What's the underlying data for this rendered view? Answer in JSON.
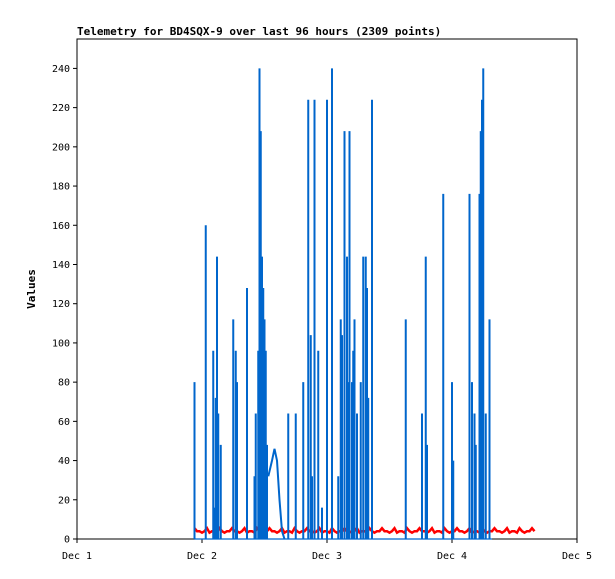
{
  "chart_data": {
    "type": "line",
    "title": "Telemetry for BD4SQX-9 over last 96 hours (2309 points)",
    "xlabel": "",
    "ylabel": "Values",
    "xlim": [
      0,
      4
    ],
    "ylim": [
      0,
      255
    ],
    "x_ticks": [
      {
        "x": 0,
        "label": "Dec 1"
      },
      {
        "x": 1,
        "label": "Dec 2"
      },
      {
        "x": 2,
        "label": "Dec 3"
      },
      {
        "x": 3,
        "label": "Dec 4"
      },
      {
        "x": 4,
        "label": "Dec 5"
      }
    ],
    "y_ticks": [
      0,
      20,
      40,
      60,
      80,
      100,
      120,
      140,
      160,
      180,
      200,
      220,
      240
    ],
    "grid": false,
    "series": [
      {
        "color": "#0066cc",
        "note_points": "x in days after Dec 1; spikes from baseline 0",
        "spikes": [
          [
            0.94,
            80
          ],
          [
            1.03,
            160
          ],
          [
            1.09,
            96
          ],
          [
            1.1,
            16
          ],
          [
            1.11,
            72
          ],
          [
            1.12,
            144
          ],
          [
            1.13,
            64
          ],
          [
            1.15,
            48
          ],
          [
            1.25,
            112
          ],
          [
            1.27,
            96
          ],
          [
            1.28,
            80
          ],
          [
            1.36,
            128
          ],
          [
            1.42,
            32
          ],
          [
            1.43,
            64
          ],
          [
            1.45,
            96
          ],
          [
            1.46,
            240
          ],
          [
            1.47,
            208
          ],
          [
            1.48,
            144
          ],
          [
            1.49,
            128
          ],
          [
            1.5,
            112
          ],
          [
            1.51,
            96
          ],
          [
            1.52,
            48
          ],
          [
            1.69,
            64
          ],
          [
            1.75,
            64
          ],
          [
            1.81,
            80
          ],
          [
            1.85,
            224
          ],
          [
            1.87,
            104
          ],
          [
            1.88,
            32
          ],
          [
            1.9,
            224
          ],
          [
            1.93,
            96
          ],
          [
            1.96,
            16
          ],
          [
            2.0,
            224
          ],
          [
            2.04,
            240
          ],
          [
            2.09,
            32
          ],
          [
            2.11,
            112
          ],
          [
            2.12,
            104
          ],
          [
            2.14,
            208
          ],
          [
            2.16,
            144
          ],
          [
            2.17,
            80
          ],
          [
            2.18,
            208
          ],
          [
            2.2,
            80
          ],
          [
            2.21,
            96
          ],
          [
            2.22,
            112
          ],
          [
            2.24,
            64
          ],
          [
            2.27,
            80
          ],
          [
            2.29,
            144
          ],
          [
            2.31,
            144
          ],
          [
            2.32,
            128
          ],
          [
            2.33,
            72
          ],
          [
            2.36,
            224
          ],
          [
            2.63,
            112
          ],
          [
            2.76,
            64
          ],
          [
            2.79,
            144
          ],
          [
            2.8,
            48
          ],
          [
            2.93,
            176
          ],
          [
            3.0,
            80
          ],
          [
            3.01,
            40
          ],
          [
            3.14,
            176
          ],
          [
            3.16,
            80
          ],
          [
            3.18,
            64
          ],
          [
            3.19,
            48
          ],
          [
            3.22,
            176
          ],
          [
            3.23,
            208
          ],
          [
            3.24,
            224
          ],
          [
            3.25,
            240
          ],
          [
            3.27,
            64
          ],
          [
            3.3,
            112
          ]
        ],
        "hump": [
          [
            1.53,
            32
          ],
          [
            1.56,
            40
          ],
          [
            1.58,
            46
          ],
          [
            1.6,
            40
          ],
          [
            1.62,
            20
          ],
          [
            1.64,
            4
          ],
          [
            1.66,
            0
          ]
        ]
      },
      {
        "color": "#ff0000",
        "baseline_value": 4,
        "x_range": [
          0.94,
          3.68
        ]
      }
    ]
  }
}
